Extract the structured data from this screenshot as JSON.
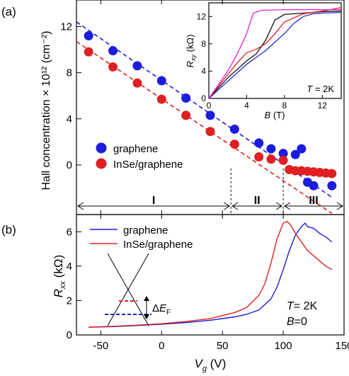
{
  "chart_data": [
    {
      "panel_label": "(a)",
      "type": "scatter",
      "ylabel": "Hall concentration × 10¹² (cm⁻²)",
      "xlim": [
        -70,
        150
      ],
      "ylim": [
        -4.3,
        14.3
      ],
      "xticks": [
        -50,
        0,
        50,
        100,
        150
      ],
      "xtick_labels": [
        "",
        "",
        "",
        "",
        ""
      ],
      "yticks": [
        0,
        4,
        8,
        12
      ],
      "ytick_labels": [
        "0",
        "4",
        "8",
        "12"
      ],
      "legend_position": "left-middle",
      "series": [
        {
          "name": "graphene",
          "color": "#1c1cdc",
          "x": [
            -60,
            -40,
            -20,
            0,
            20,
            40,
            60,
            80,
            90,
            100,
            110,
            115,
            120,
            125,
            140
          ],
          "y": [
            11.2,
            9.9,
            8.6,
            7.3,
            5.8,
            4.3,
            3.1,
            1.9,
            1.4,
            1.0,
            0.9,
            1.4,
            -1.5,
            -1.8,
            -1.8
          ],
          "fit": {
            "x": [
              -70,
              140
            ],
            "y": [
              12.4,
              -2.8
            ],
            "style": "dashed"
          }
        },
        {
          "name": "InSe/graphene",
          "color": "#e02020",
          "x": [
            -60,
            -40,
            -20,
            0,
            20,
            40,
            60,
            80,
            90,
            100,
            105,
            110,
            115,
            120,
            125,
            130,
            135,
            140
          ],
          "y": [
            9.8,
            8.5,
            7.1,
            5.7,
            4.3,
            2.9,
            1.8,
            0.7,
            0.5,
            0.4,
            -0.4,
            -0.5,
            -0.5,
            -0.55,
            -0.6,
            -0.65,
            -0.7,
            -0.75
          ],
          "fit": {
            "x": [
              -70,
              140
            ],
            "y": [
              10.7,
              -4.2
            ],
            "style": "dashed"
          }
        }
      ],
      "regions": [
        {
          "label": "I",
          "x_range": [
            -70,
            57
          ]
        },
        {
          "label": "II",
          "x_range": [
            57,
            100
          ]
        },
        {
          "label": "III",
          "x_range": [
            100,
            150
          ]
        }
      ],
      "region_dividers_x": [
        57,
        100
      ],
      "inset": {
        "type": "line",
        "xlabel": "B (T)",
        "ylabel": "R_xy (kΩ)",
        "xlim": [
          0,
          14
        ],
        "ylim": [
          0,
          14
        ],
        "xticks": [
          0,
          4,
          8,
          12
        ],
        "yticks": [
          0,
          4,
          8,
          12
        ],
        "annotation": "T = 2K",
        "series": [
          {
            "color": "#2030d0",
            "x": [
              0,
              2,
              4,
              6,
              8,
              9,
              10,
              11,
              12,
              14
            ],
            "y": [
              0,
              2.5,
              5,
              7,
              9.5,
              11,
              12,
              12.4,
              12.5,
              12.6
            ]
          },
          {
            "color": "#111111",
            "x": [
              0,
              2,
              4,
              5,
              6,
              7,
              8,
              10,
              12,
              14
            ],
            "y": [
              0,
              3,
              5.5,
              6.5,
              8.5,
              11.5,
              12.3,
              12.5,
              12.7,
              12.8
            ]
          },
          {
            "color": "#e02020",
            "x": [
              0,
              2,
              3,
              4,
              5,
              6,
              7,
              8,
              10,
              12,
              14
            ],
            "y": [
              0,
              3.5,
              5.2,
              6.7,
              7.2,
              8,
              9.5,
              11.2,
              12.4,
              12.8,
              13.3
            ]
          },
          {
            "color": "#e020e0",
            "x": [
              0,
              2,
              3,
              4,
              4.7,
              5.5,
              8,
              10,
              12,
              14
            ],
            "y": [
              0,
              4,
              6.5,
              9.5,
              12.5,
              12.9,
              13,
              13,
              13,
              13
            ]
          }
        ]
      }
    },
    {
      "panel_label": "(b)",
      "type": "line",
      "xlabel": "V_g (V)",
      "ylabel": "R_xx (kΩ)",
      "xlim": [
        -70,
        150
      ],
      "ylim": [
        0,
        7
      ],
      "xticks": [
        -50,
        0,
        50,
        100,
        150
      ],
      "xtick_labels": [
        "-50",
        "0",
        "50",
        "100",
        "150"
      ],
      "yticks": [
        0,
        2,
        4,
        6
      ],
      "ytick_labels": [
        "0",
        "2",
        "4",
        "6"
      ],
      "legend_position": "top-left",
      "annotations": [
        "T= 2K",
        "B=0"
      ],
      "schematic_label": "ΔE_F",
      "series": [
        {
          "name": "graphene",
          "color": "#1c1cdc",
          "x": [
            -60,
            -40,
            -20,
            0,
            20,
            40,
            60,
            70,
            80,
            90,
            95,
            100,
            105,
            110,
            115,
            118,
            120,
            125,
            130,
            135,
            140
          ],
          "y": [
            0.45,
            0.48,
            0.55,
            0.62,
            0.72,
            0.85,
            1.05,
            1.2,
            1.45,
            2.1,
            2.8,
            3.8,
            4.9,
            5.8,
            6.3,
            6.5,
            6.3,
            6.2,
            5.9,
            5.7,
            5.4
          ]
        },
        {
          "name": "InSe/graphene",
          "color": "#e02020",
          "x": [
            -60,
            -40,
            -20,
            0,
            20,
            40,
            60,
            70,
            80,
            85,
            90,
            95,
            100,
            103,
            106,
            110,
            115,
            120,
            125,
            130,
            135,
            140
          ],
          "y": [
            0.45,
            0.5,
            0.57,
            0.65,
            0.78,
            0.95,
            1.3,
            1.6,
            2.3,
            3.0,
            4.2,
            5.6,
            6.5,
            6.6,
            6.4,
            5.9,
            5.4,
            4.9,
            4.6,
            4.3,
            4.0,
            3.8
          ]
        }
      ]
    }
  ]
}
